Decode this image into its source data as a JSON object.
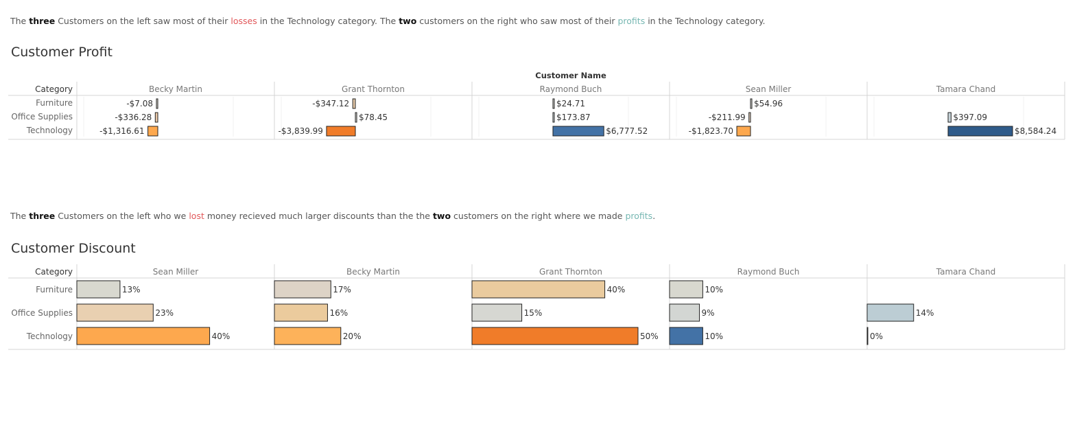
{
  "profit_caption": {
    "p1": "The ",
    "b1": "three",
    "p2": " Customers on the left saw most of their ",
    "neg": "losses",
    "p3": " in the Technology category. The ",
    "b2": "two",
    "p4": " customers on the right who saw most of their ",
    "pos": "profits",
    "p5": " in the Technology category."
  },
  "discount_caption": {
    "p1": "The ",
    "b1": "three",
    "p2": " Customers on the left who we ",
    "neg": "lost",
    "p3": " money recieved much larger discounts than the the ",
    "b2": "two",
    "p4": " customers on the right where we made ",
    "pos": "profits",
    "p5": "."
  },
  "chart_data": [
    {
      "type": "bar",
      "orientation": "horizontal",
      "title": "Customer Profit",
      "column_header": "Customer Name",
      "row_header": "Category",
      "categories": [
        "Furniture",
        "Office Supplies",
        "Technology"
      ],
      "customers": [
        "Becky Martin",
        "Grant Thornton",
        "Raymond Buch",
        "Sean Miller",
        "Tamara Chand"
      ],
      "series": [
        {
          "name": "Becky Martin",
          "values": [
            -7.08,
            -336.28,
            -1316.61
          ],
          "labels": [
            "-$7.08",
            "-$336.28",
            "-$1,316.61"
          ],
          "colors": [
            "#d9d5cc",
            "#e9c8a8",
            "#fda84e"
          ]
        },
        {
          "name": "Grant Thornton",
          "values": [
            -347.12,
            78.45,
            -3839.99
          ],
          "labels": [
            "-$347.12",
            "$78.45",
            "-$3,839.99"
          ],
          "colors": [
            "#e6c9a8",
            "#d5d7d2",
            "#f07c29"
          ]
        },
        {
          "name": "Raymond Buch",
          "values": [
            24.71,
            173.87,
            6777.52
          ],
          "labels": [
            "$24.71",
            "$173.87",
            "$6,777.52"
          ],
          "colors": [
            "#d8d8d3",
            "#cfd6d8",
            "#4372a6"
          ]
        },
        {
          "name": "Sean Miller",
          "values": [
            54.96,
            -211.99,
            -1823.7
          ],
          "labels": [
            "$54.96",
            "-$211.99",
            "-$1,823.70"
          ],
          "colors": [
            "#d8d8d3",
            "#e3d0bc",
            "#fda84e"
          ]
        },
        {
          "name": "Tamara Chand",
          "values": [
            0,
            397.09,
            8584.24
          ],
          "labels": [
            "",
            "$397.09",
            "$8,584.24"
          ],
          "colors": [
            "#d8d8d3",
            "#c6d3d8",
            "#2f5b8a"
          ]
        }
      ]
    },
    {
      "type": "bar",
      "orientation": "horizontal",
      "title": "Customer Discount",
      "row_header": "Category",
      "categories": [
        "Furniture",
        "Office Supplies",
        "Technology"
      ],
      "customers": [
        "Sean Miller",
        "Becky Martin",
        "Grant Thornton",
        "Raymond Buch",
        "Tamara Chand"
      ],
      "series": [
        {
          "name": "Sean Miller",
          "values": [
            0.13,
            0.23,
            0.4
          ],
          "labels": [
            "13%",
            "23%",
            "40%"
          ],
          "colors": [
            "#d8d8cf",
            "#e9d0b1",
            "#fda84e"
          ]
        },
        {
          "name": "Becky Martin",
          "values": [
            0.17,
            0.16,
            0.2
          ],
          "labels": [
            "17%",
            "16%",
            "20%"
          ],
          "colors": [
            "#ddd3c6",
            "#ebcb9d",
            "#fdb25a"
          ]
        },
        {
          "name": "Grant Thornton",
          "values": [
            0.4,
            0.15,
            0.5
          ],
          "labels": [
            "40%",
            "15%",
            "50%"
          ],
          "colors": [
            "#eacb9e",
            "#d6d7d2",
            "#f07c29"
          ]
        },
        {
          "name": "Raymond Buch",
          "values": [
            0.1,
            0.09,
            0.1
          ],
          "labels": [
            "10%",
            "9%",
            "10%"
          ],
          "colors": [
            "#d8d8cf",
            "#d3d6d3",
            "#4372a6"
          ]
        },
        {
          "name": "Tamara Chand",
          "values": [
            null,
            0.14,
            0.0
          ],
          "labels": [
            "",
            "14%",
            "0%"
          ],
          "colors": [
            "#d8d8cf",
            "#bccdd4",
            "#2f5b8a"
          ]
        }
      ]
    }
  ]
}
